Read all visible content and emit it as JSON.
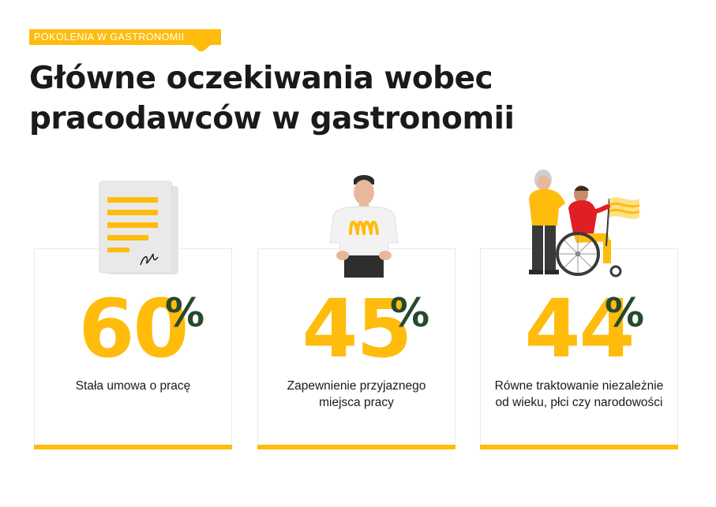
{
  "header": {
    "tag": "POKOLENIA W GASTRONOMII",
    "title_line1": "Główne oczekiwania wobec",
    "title_line2": "pracodawców w gastronomii"
  },
  "colors": {
    "accent": "#ffbc0d",
    "percent": "#264a2b",
    "text": "#1a1a1a"
  },
  "stats": [
    {
      "value": "60",
      "unit": "%",
      "label_line1": "Stała umowa o pracę",
      "label_line2": "",
      "icon": "contract-document-icon"
    },
    {
      "value": "45",
      "unit": "%",
      "label_line1": "Zapewnienie przyjaznego",
      "label_line2": "miejsca pracy",
      "icon": "employee-illustration-icon"
    },
    {
      "value": "44",
      "unit": "%",
      "label_line1": "Równe traktowanie niezależnie",
      "label_line2": "od wieku, płci czy narodowości",
      "icon": "diverse-people-illustration-icon"
    }
  ]
}
